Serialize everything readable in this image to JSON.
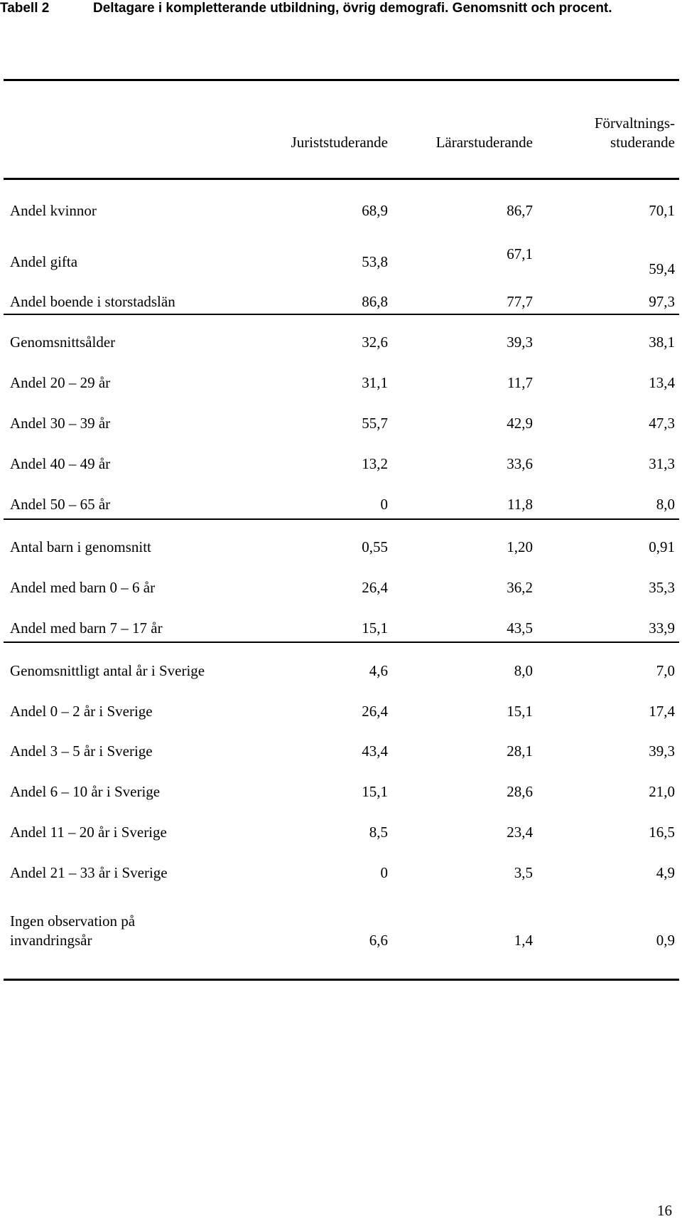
{
  "caption": {
    "label": "Tabell 2",
    "text": "Deltagare i kompletterande utbildning, övrig demografi. Genomsnitt och procent."
  },
  "table": {
    "headers": {
      "col1": "Juriststuderande",
      "col2": "Lärarstuderande",
      "col3_line1": "Förvaltnings-",
      "col3_line2": "studerande"
    },
    "rows": [
      {
        "label": "Andel kvinnor",
        "c1": "68,9",
        "c2": "86,7",
        "c3": "70,1"
      },
      {
        "label": "Andel gifta",
        "c1": "53,8",
        "c2": "67,1",
        "c3": "59,4"
      },
      {
        "label": "Andel boende i storstadslän",
        "c1": "86,8",
        "c2": "77,7",
        "c3": "97,3"
      },
      {
        "label": "Genomsnittsålder",
        "c1": "32,6",
        "c2": "39,3",
        "c3": "38,1"
      },
      {
        "label": "Andel 20 – 29 år",
        "c1": "31,1",
        "c2": "11,7",
        "c3": "13,4"
      },
      {
        "label": "Andel 30 – 39 år",
        "c1": "55,7",
        "c2": "42,9",
        "c3": "47,3"
      },
      {
        "label": "Andel 40 – 49 år",
        "c1": "13,2",
        "c2": "33,6",
        "c3": "31,3"
      },
      {
        "label": "Andel 50 – 65 år",
        "c1": "0",
        "c2": "11,8",
        "c3": "8,0"
      },
      {
        "label": "Antal barn i genomsnitt",
        "c1": "0,55",
        "c2": "1,20",
        "c3": "0,91"
      },
      {
        "label": "Andel med barn 0 – 6 år",
        "c1": "26,4",
        "c2": "36,2",
        "c3": "35,3"
      },
      {
        "label": "Andel med barn 7 – 17 år",
        "c1": "15,1",
        "c2": "43,5",
        "c3": "33,9"
      },
      {
        "label": "Genomsnittligt antal år i Sverige",
        "c1": "4,6",
        "c2": "8,0",
        "c3": "7,0"
      },
      {
        "label": "Andel 0 – 2 år i Sverige",
        "c1": "26,4",
        "c2": "15,1",
        "c3": "17,4"
      },
      {
        "label": "Andel 3 – 5 år i Sverige",
        "c1": "43,4",
        "c2": "28,1",
        "c3": "39,3"
      },
      {
        "label": "Andel 6 – 10 år i Sverige",
        "c1": "15,1",
        "c2": "28,6",
        "c3": "21,0"
      },
      {
        "label": "Andel 11 – 20 år i Sverige",
        "c1": "8,5",
        "c2": "23,4",
        "c3": "16,5"
      },
      {
        "label": "Andel 21 – 33 år i Sverige",
        "c1": "0",
        "c2": "3,5",
        "c3": "4,9"
      }
    ],
    "last_row": {
      "label_line1": "Ingen observation på",
      "label_line2": "invandringsår",
      "c1": "6,6",
      "c2": "1,4",
      "c3": "0,9"
    }
  },
  "page_number": "16"
}
